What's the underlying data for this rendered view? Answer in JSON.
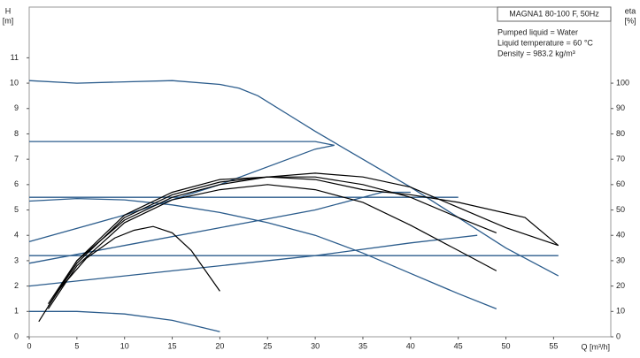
{
  "chart_data": {
    "type": "line",
    "title": "MAGNA1 80-100 F, 50Hz",
    "annotations": [
      "Pumped liquid = Water",
      "Liquid temperature = 60 °C",
      "Density = 983.2 kg/m³"
    ],
    "ylabel": "H",
    "yunit": "[m]",
    "y2label": "eta",
    "y2unit": "[%]",
    "xlabel": "Q [m³/h]",
    "xlim": [
      0,
      61
    ],
    "ylim": [
      0,
      13
    ],
    "y2lim": [
      0,
      130
    ],
    "xticks": [
      0,
      5,
      10,
      15,
      20,
      25,
      30,
      35,
      40,
      45,
      50,
      55
    ],
    "yticks": [
      0,
      1,
      2,
      3,
      4,
      5,
      6,
      7,
      8,
      9,
      10,
      11
    ],
    "y2ticks": [
      0,
      10,
      20,
      30,
      40,
      50,
      60,
      70,
      80,
      90,
      100
    ],
    "series": [
      {
        "color": "#2b5c8c",
        "x": [
          0,
          5,
          10,
          15,
          20,
          22,
          24,
          27,
          30,
          35,
          40,
          45,
          50,
          55.5
        ],
        "values": [
          10.1,
          10.0,
          10.05,
          10.1,
          9.95,
          9.8,
          9.5,
          8.8,
          8.1,
          7.0,
          5.9,
          4.7,
          3.5,
          2.4
        ]
      },
      {
        "color": "#2b5c8c",
        "x": [
          0,
          30,
          32
        ],
        "values": [
          7.7,
          7.7,
          7.55
        ]
      },
      {
        "color": "#2b5c8c",
        "x": [
          0,
          10,
          20,
          30,
          32
        ],
        "values": [
          3.75,
          4.8,
          6.0,
          7.4,
          7.55
        ]
      },
      {
        "color": "#2b5c8c",
        "x": [
          0,
          45
        ],
        "values": [
          5.5,
          5.5
        ]
      },
      {
        "color": "#2b5c8c",
        "x": [
          0,
          55.5
        ],
        "values": [
          3.2,
          3.2
        ]
      },
      {
        "color": "#2b5c8c",
        "x": [
          0,
          5,
          10,
          15,
          20,
          25,
          30,
          35,
          40,
          45,
          49
        ],
        "values": [
          5.35,
          5.45,
          5.4,
          5.2,
          4.9,
          4.5,
          4.0,
          3.3,
          2.5,
          1.7,
          1.1
        ]
      },
      {
        "color": "#2b5c8c",
        "x": [
          0,
          10,
          20,
          30,
          37,
          40
        ],
        "values": [
          2.9,
          3.6,
          4.3,
          5.0,
          5.7,
          5.7
        ]
      },
      {
        "color": "#2b5c8c",
        "x": [
          0,
          15,
          30,
          40,
          47
        ],
        "values": [
          2.0,
          2.6,
          3.2,
          3.7,
          4.0
        ]
      },
      {
        "color": "#2b5c8c",
        "x": [
          0,
          5,
          10,
          15,
          20
        ],
        "values": [
          1.0,
          1.0,
          0.9,
          0.65,
          0.2
        ]
      },
      {
        "color": "#000000",
        "axis": "y2",
        "x": [
          2,
          5,
          10,
          15,
          20,
          25,
          30,
          35,
          40,
          45,
          50,
          55.5
        ],
        "values": [
          12,
          30,
          46,
          55,
          60,
          63,
          64.5,
          63,
          59,
          51,
          43,
          36
        ]
      },
      {
        "color": "#000000",
        "axis": "y2",
        "x": [
          1,
          3,
          6,
          9,
          11,
          13,
          15,
          17,
          20
        ],
        "values": [
          6,
          18,
          31,
          39,
          42,
          43.5,
          41,
          34,
          18
        ]
      },
      {
        "color": "#000000",
        "axis": "y2",
        "x": [
          2,
          5,
          10,
          15,
          20,
          25,
          30,
          35,
          40,
          45,
          49
        ],
        "values": [
          11,
          28,
          45,
          54,
          58,
          60,
          58,
          53,
          44,
          34,
          26
        ]
      },
      {
        "color": "#000000",
        "axis": "y2",
        "x": [
          2,
          5,
          10,
          15,
          20,
          25,
          30,
          35,
          40,
          45,
          49
        ],
        "values": [
          12,
          29,
          47,
          56,
          61,
          63,
          63,
          60,
          55,
          47,
          41
        ]
      },
      {
        "color": "#000000",
        "axis": "y2",
        "x": [
          2,
          5,
          10,
          15,
          20,
          25,
          30,
          35,
          40,
          45,
          52,
          55.5
        ],
        "values": [
          13,
          30,
          48,
          57,
          62,
          63,
          62,
          58,
          56,
          53,
          47,
          36
        ]
      }
    ]
  }
}
